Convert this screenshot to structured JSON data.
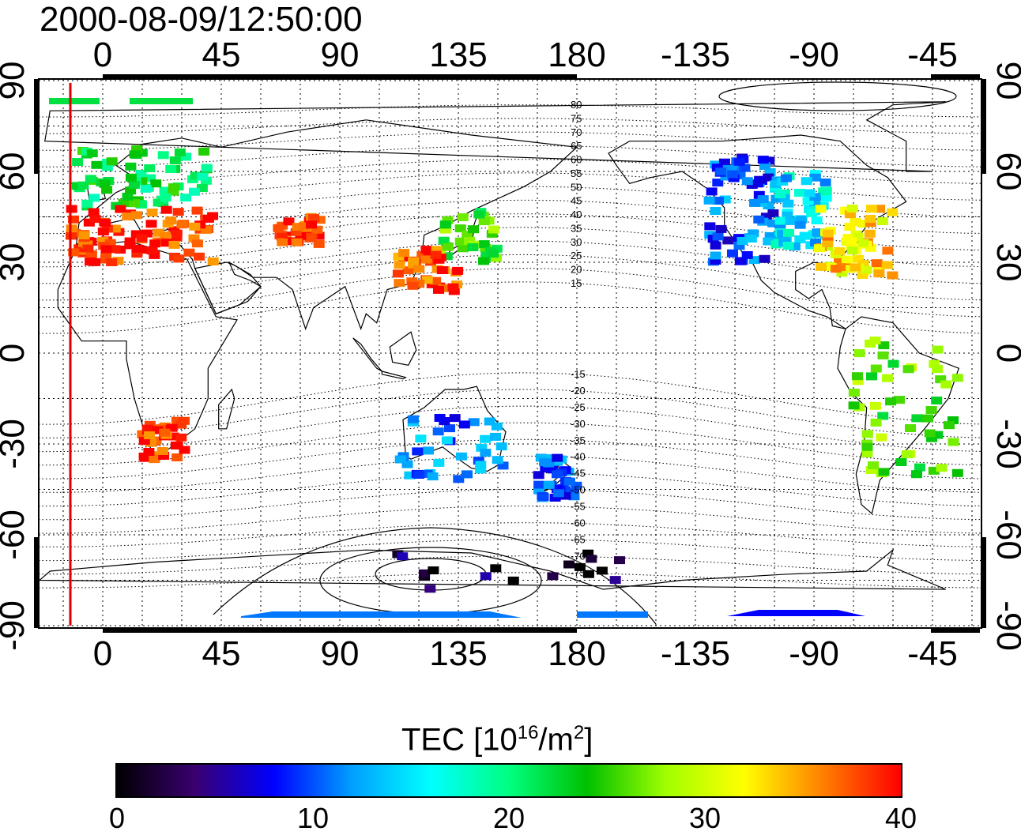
{
  "timestamp": "2000-08-09/12:50:00",
  "map": {
    "lon_ticks_top": [
      "0",
      "45",
      "90",
      "135",
      "180",
      "-135",
      "-90",
      "-45"
    ],
    "lon_ticks_bottom": [
      "0",
      "45",
      "90",
      "135",
      "180",
      "-135",
      "-90",
      "-45"
    ],
    "lat_ticks_left": [
      "90",
      "60",
      "30",
      "0",
      "-30",
      "-60",
      "-90"
    ],
    "lat_ticks_right": [
      "90",
      "60",
      "30",
      "0",
      "-30",
      "-60",
      "-90"
    ],
    "magnetic_latitude_labels": [
      "80",
      "75",
      "70",
      "65",
      "60",
      "55",
      "50",
      "45",
      "40",
      "35",
      "30",
      "25",
      "20",
      "15",
      "-15",
      "-20",
      "-25",
      "-30",
      "-35",
      "-40",
      "-45",
      "-50",
      "-55",
      "-60",
      "-65",
      "-70",
      "-75"
    ],
    "terminator_color": "#e00000",
    "grid": true
  },
  "colorbar": {
    "title_prefix": "TEC  [10",
    "title_exp": "16",
    "title_mid": "/m",
    "title_exp2": "2",
    "title_suffix": "]",
    "ticks": [
      "0",
      "10",
      "20",
      "30",
      "40"
    ],
    "min": 0,
    "max": 40,
    "colors": [
      "#000000",
      "#3a0070",
      "#0000ff",
      "#00a0ff",
      "#00ffff",
      "#00ff80",
      "#00c000",
      "#a0ff00",
      "#ffff00",
      "#ff8000",
      "#ff0000"
    ]
  },
  "tec_regions": [
    {
      "name": "europe-north",
      "tec": 22
    },
    {
      "name": "europe-south",
      "tec": 39
    },
    {
      "name": "central-asia",
      "tec": 39
    },
    {
      "name": "japan-north",
      "tec": 25
    },
    {
      "name": "east-china",
      "tec": 38
    },
    {
      "name": "north-america-west",
      "tec": 10
    },
    {
      "name": "north-america-central",
      "tec": 15
    },
    {
      "name": "north-america-east",
      "tec": 33
    },
    {
      "name": "south-africa",
      "tec": 39
    },
    {
      "name": "australia",
      "tec": 11
    },
    {
      "name": "new-zealand",
      "tec": 10
    },
    {
      "name": "south-america",
      "tec": 26
    },
    {
      "name": "antarctica-band",
      "tec": 11
    },
    {
      "name": "antarctic-pacific",
      "tec": 2
    }
  ]
}
